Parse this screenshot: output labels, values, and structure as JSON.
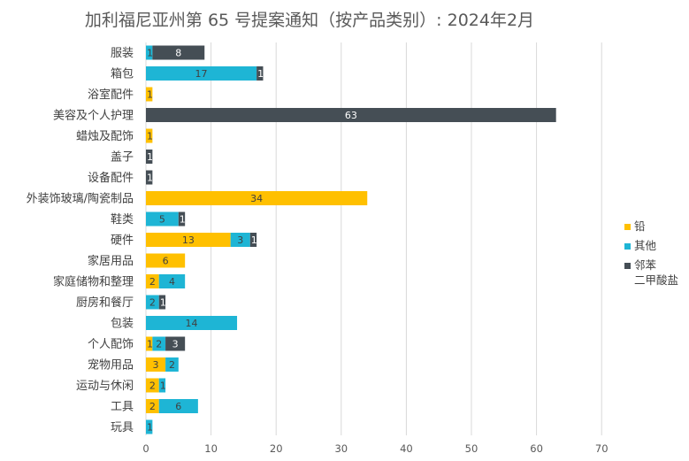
{
  "chart_data": {
    "type": "bar",
    "orientation": "horizontal",
    "stacked": true,
    "title": "加利福尼亚州第 65 号提案通知（按产品类别）: 2024年2月",
    "xlabel": "",
    "ylabel": "",
    "xlim": [
      0,
      70
    ],
    "xticks": [
      0,
      10,
      20,
      30,
      40,
      50,
      60,
      70
    ],
    "grid": true,
    "legend_position": "right",
    "categories": [
      "服装",
      "箱包",
      "浴室配件",
      "美容及个人护理",
      "蜡烛及配饰",
      "盖子",
      "设备配件",
      "外装饰玻璃/陶瓷制品",
      "鞋类",
      "硬件",
      "家居用品",
      "家庭储物和整理",
      "厨房和餐厅",
      "包装",
      "个人配饰",
      "宠物用品",
      "运动与休闲",
      "工具",
      "玩具"
    ],
    "series": [
      {
        "name": "铅",
        "color": "#FFC000",
        "values": [
          0,
          0,
          1,
          0,
          1,
          0,
          0,
          34,
          0,
          13,
          6,
          2,
          0,
          0,
          1,
          3,
          2,
          2,
          0
        ]
      },
      {
        "name": "其他",
        "color": "#1EB5D5",
        "values": [
          1,
          17,
          0,
          0,
          0,
          0,
          0,
          0,
          5,
          3,
          0,
          4,
          2,
          14,
          2,
          2,
          1,
          6,
          1
        ]
      },
      {
        "name": "邻苯二甲酸盐",
        "color": "#454E55",
        "values": [
          8,
          1,
          0,
          63,
          0,
          1,
          1,
          0,
          1,
          1,
          0,
          0,
          1,
          0,
          3,
          0,
          0,
          0,
          0
        ]
      }
    ]
  }
}
